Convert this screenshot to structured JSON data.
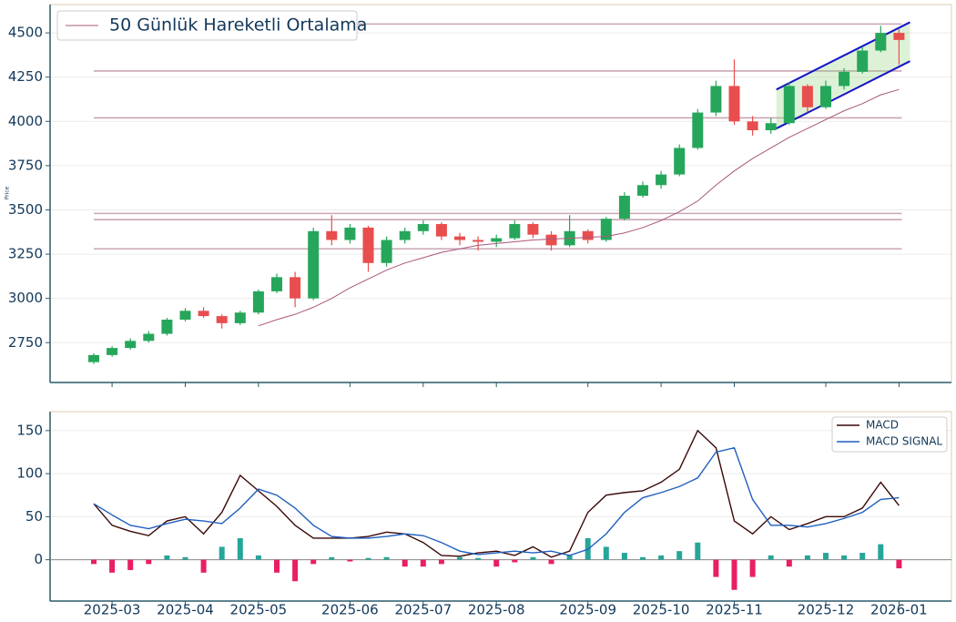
{
  "chart_data": [
    {
      "type": "candlestick",
      "y_label": "Price",
      "open": [
        2640,
        2680,
        2720,
        2760,
        2800,
        2880,
        2930,
        2900,
        2860,
        2920,
        3040,
        3120,
        3000,
        3380,
        3330,
        3400,
        3200,
        3330,
        3380,
        3420,
        3350,
        3330,
        3320,
        3340,
        3420,
        3360,
        3300,
        3380,
        3330,
        3450,
        3580,
        3640,
        3700,
        3850,
        4050,
        4200,
        4000,
        3950,
        3990,
        4200,
        4080,
        4200,
        4280,
        4400,
        4500
      ],
      "high": [
        2690,
        2730,
        2775,
        2815,
        2890,
        2945,
        2950,
        2910,
        2930,
        3050,
        3140,
        3150,
        3400,
        3470,
        3420,
        3410,
        3350,
        3400,
        3440,
        3430,
        3370,
        3350,
        3360,
        3440,
        3430,
        3380,
        3470,
        3390,
        3460,
        3600,
        3660,
        3720,
        3870,
        4070,
        4230,
        4350,
        4030,
        4020,
        4220,
        4210,
        4230,
        4300,
        4420,
        4540,
        4520
      ],
      "low": [
        2630,
        2670,
        2710,
        2750,
        2790,
        2870,
        2890,
        2830,
        2850,
        2910,
        3030,
        2950,
        2990,
        3300,
        3310,
        3150,
        3180,
        3310,
        3360,
        3330,
        3300,
        3270,
        3290,
        3330,
        3340,
        3270,
        3290,
        3310,
        3320,
        3440,
        3570,
        3620,
        3690,
        3840,
        4030,
        3980,
        3920,
        3930,
        3980,
        4050,
        4070,
        4180,
        4270,
        4390,
        4320
      ],
      "close": [
        2680,
        2720,
        2760,
        2800,
        2880,
        2930,
        2900,
        2860,
        2920,
        3040,
        3120,
        3000,
        3380,
        3330,
        3400,
        3200,
        3330,
        3380,
        3420,
        3350,
        3330,
        3320,
        3340,
        3420,
        3360,
        3300,
        3380,
        3330,
        3450,
        3580,
        3640,
        3700,
        3850,
        4050,
        4200,
        4000,
        3950,
        3990,
        4200,
        4080,
        4200,
        4280,
        4400,
        4500,
        4460
      ],
      "up_color": "#26a65b",
      "down_color": "#e84e4e",
      "series": [
        {
          "name": "50 Günlük Hareketli Ortalama",
          "color": "#a8587a",
          "values": [
            null,
            null,
            null,
            null,
            null,
            null,
            null,
            null,
            null,
            2845,
            2880,
            2910,
            2950,
            3000,
            3060,
            3110,
            3160,
            3200,
            3230,
            3260,
            3280,
            3300,
            3310,
            3320,
            3330,
            3335,
            3340,
            3345,
            3350,
            3370,
            3400,
            3440,
            3490,
            3550,
            3640,
            3720,
            3790,
            3850,
            3910,
            3960,
            4010,
            4060,
            4100,
            4150,
            4180
          ]
        }
      ],
      "levels": [
        4550,
        4285,
        4020,
        3480,
        3445,
        3280
      ],
      "level_color": "#c9a6b6",
      "channel": {
        "upper": [
          4180,
          4560
        ],
        "lower": [
          3960,
          4340
        ],
        "color": "#1414c8",
        "fill": "#8fd07a"
      },
      "ylim": [
        2525,
        4660
      ],
      "yticks": [
        2750,
        3000,
        3250,
        3500,
        3750,
        4000,
        4250,
        4500
      ],
      "grid": true,
      "legend": "upper left"
    },
    {
      "type": "line",
      "categories": [
        null,
        "2025-03",
        null,
        null,
        null,
        "2025-04",
        null,
        null,
        null,
        "2025-05",
        null,
        null,
        null,
        null,
        "2025-06",
        null,
        null,
        null,
        "2025-07",
        null,
        null,
        null,
        "2025-08",
        null,
        null,
        null,
        null,
        "2025-09",
        null,
        null,
        null,
        "2025-10",
        null,
        null,
        null,
        "2025-11",
        null,
        null,
        null,
        null,
        "2025-12",
        null,
        null,
        null,
        "2026-01"
      ],
      "series": [
        {
          "name": "MACD",
          "color": "#3a0808",
          "values": [
            65,
            40,
            33,
            28,
            45,
            50,
            30,
            55,
            98,
            80,
            62,
            40,
            25,
            25,
            25,
            27,
            32,
            30,
            20,
            5,
            4,
            8,
            10,
            5,
            15,
            3,
            10,
            55,
            75,
            78,
            80,
            90,
            105,
            150,
            130,
            45,
            30,
            50,
            35,
            42,
            50,
            50,
            60,
            90,
            63
          ]
        },
        {
          "name": "MACD SIGNAL",
          "color": "#1f5fc0",
          "values": [
            65,
            52,
            40,
            36,
            42,
            47,
            45,
            42,
            60,
            82,
            75,
            60,
            40,
            27,
            25,
            25,
            27,
            30,
            28,
            20,
            10,
            6,
            8,
            10,
            8,
            10,
            5,
            12,
            30,
            55,
            72,
            78,
            85,
            95,
            125,
            130,
            70,
            40,
            40,
            38,
            42,
            48,
            55,
            70,
            72
          ]
        }
      ],
      "histogram": [
        -5,
        -15,
        -12,
        -5,
        5,
        3,
        -15,
        15,
        25,
        5,
        -15,
        -25,
        -5,
        3,
        -2,
        2,
        3,
        -8,
        -8,
        -5,
        3,
        2,
        -8,
        -3,
        3,
        -5,
        5,
        25,
        15,
        8,
        3,
        5,
        10,
        20,
        -20,
        -35,
        -20,
        5,
        -8,
        5,
        8,
        5,
        8,
        18,
        -10
      ],
      "positive_color": "#26a69a",
      "negative_color": "#e91e63",
      "ylim": [
        -48,
        172
      ],
      "yticks": [
        0,
        50,
        100,
        150
      ],
      "grid": true,
      "legend": "upper right"
    }
  ]
}
